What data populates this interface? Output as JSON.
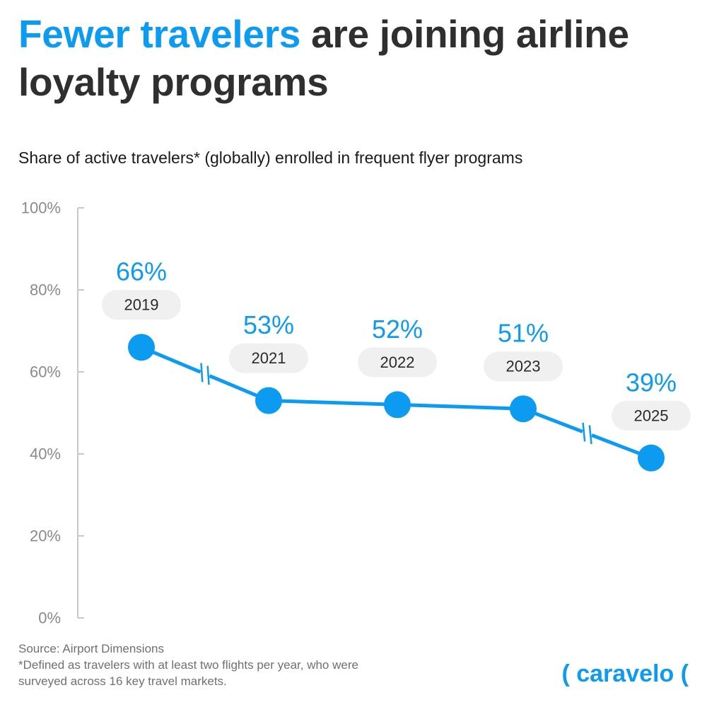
{
  "title": {
    "highlight": "Fewer travelers",
    "rest": " are joining airline loyalty programs"
  },
  "subtitle": "Share of active travelers* (globally) enrolled in frequent flyer programs",
  "chart_data": {
    "type": "line",
    "title": "Fewer travelers are joining airline loyalty programs",
    "subtitle": "Share of active travelers* (globally) enrolled in frequent flyer programs",
    "xlabel": "",
    "ylabel": "",
    "categories": [
      "2019",
      "2021",
      "2022",
      "2023",
      "2025"
    ],
    "series": [
      {
        "values": [
          66,
          53,
          52,
          51,
          39
        ],
        "data_labels": [
          "66%",
          "53%",
          "52%",
          "51%",
          "39%"
        ]
      }
    ],
    "ylim": [
      0,
      100
    ],
    "yticks": [
      0,
      20,
      40,
      60,
      80,
      100
    ],
    "ytick_labels": [
      "0%",
      "20%",
      "40%",
      "60%",
      "80%",
      "100%"
    ],
    "axis_breaks_after": [
      "2019",
      "2023"
    ],
    "grid": false,
    "legend": "none",
    "colors": {
      "series": "#0d9bf2",
      "axis": "#c8c8c8",
      "tick_label": "#8a8a8a",
      "pill": "#f0f0f0"
    }
  },
  "footer": {
    "source": "Source: Airport Dimensions",
    "note_line1": "*Defined as travelers with at least two flights per year, who were",
    "note_line2": "surveyed across 16 key travel markets."
  },
  "brand": "( caravelo ("
}
